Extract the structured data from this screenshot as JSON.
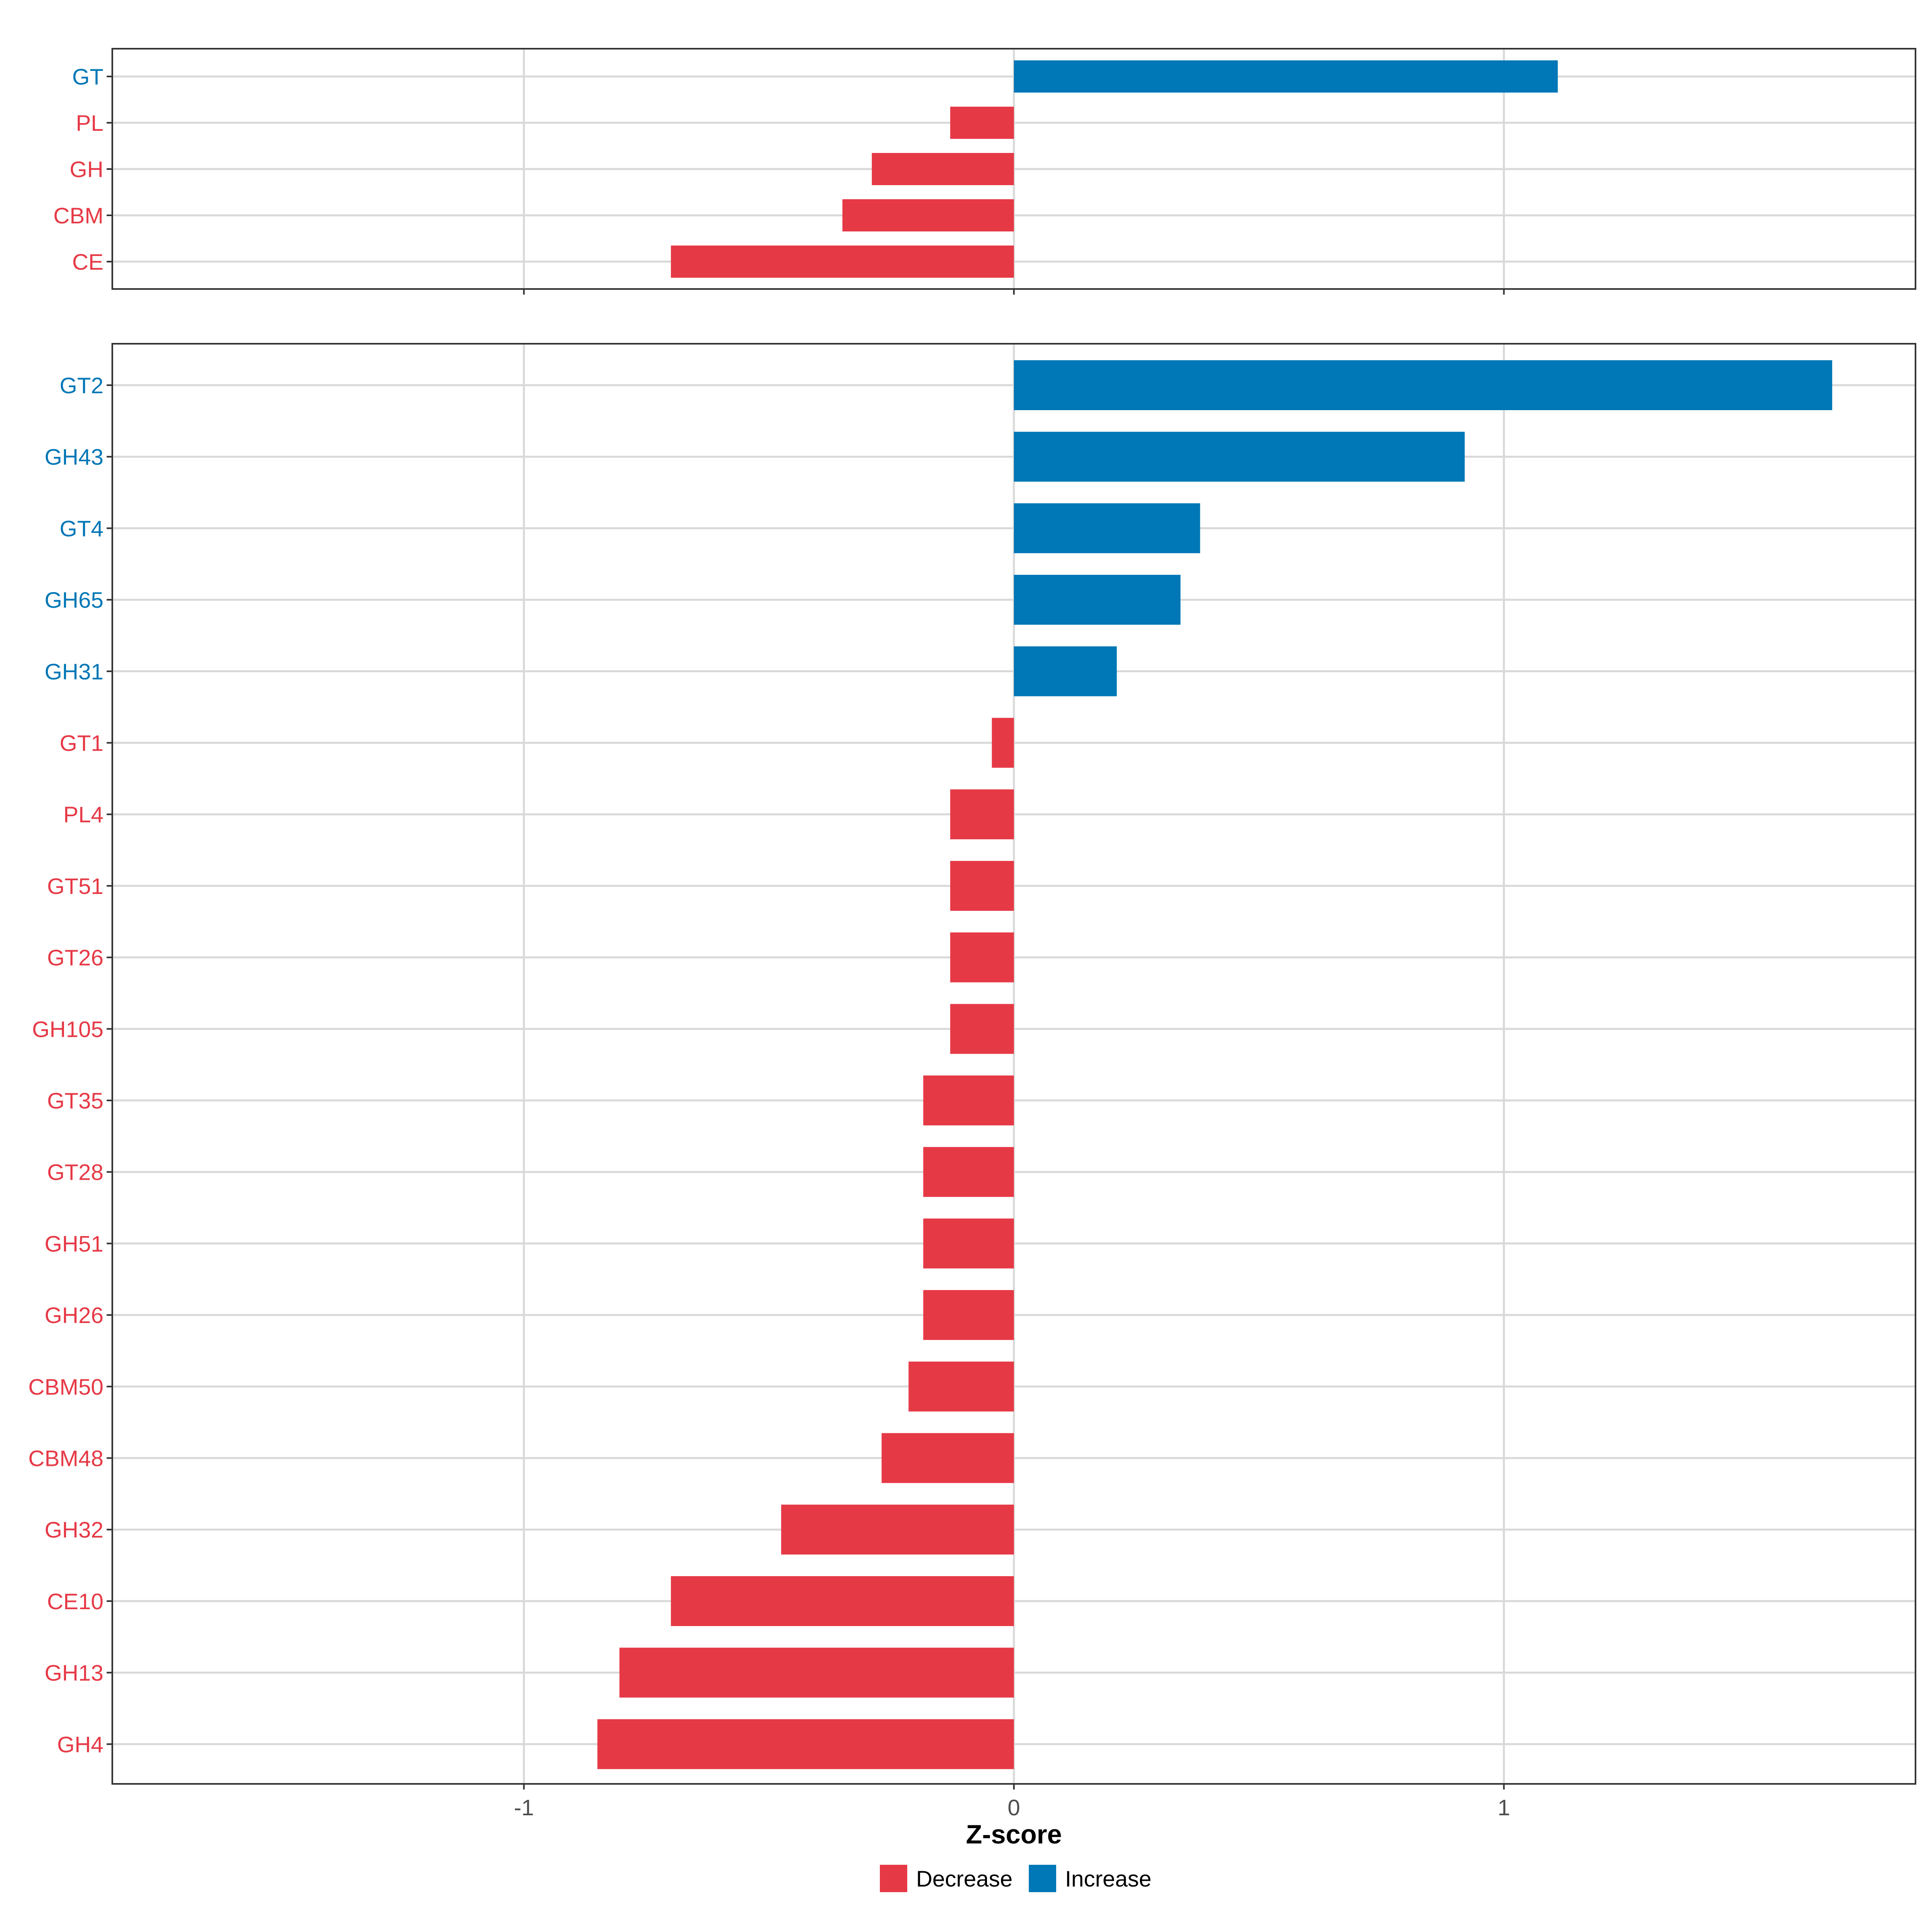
{
  "chart_data": [
    {
      "type": "bar",
      "orientation": "horizontal",
      "panel": "top",
      "categories": [
        "GT",
        "PL",
        "GH",
        "CBM",
        "CE"
      ],
      "values": [
        1.11,
        -0.13,
        -0.29,
        -0.35,
        -0.7
      ],
      "direction": [
        "Increase",
        "Decrease",
        "Decrease",
        "Decrease",
        "Decrease"
      ],
      "xlim": [
        -1.84,
        1.84
      ],
      "xticks": [
        -1,
        0,
        1
      ],
      "grid": true
    },
    {
      "type": "bar",
      "orientation": "horizontal",
      "panel": "bottom",
      "categories": [
        "GT2",
        "GH43",
        "GT4",
        "GH65",
        "GH31",
        "GT1",
        "PL4",
        "GT51",
        "GT26",
        "GH105",
        "GT35",
        "GT28",
        "GH51",
        "GH26",
        "CBM50",
        "CBM48",
        "GH32",
        "CE10",
        "GH13",
        "GH4"
      ],
      "values": [
        1.67,
        0.92,
        0.38,
        0.34,
        0.21,
        -0.045,
        -0.13,
        -0.13,
        -0.13,
        -0.13,
        -0.185,
        -0.185,
        -0.185,
        -0.185,
        -0.215,
        -0.27,
        -0.475,
        -0.7,
        -0.805,
        -0.85
      ],
      "direction": [
        "Increase",
        "Increase",
        "Increase",
        "Increase",
        "Increase",
        "Decrease",
        "Decrease",
        "Decrease",
        "Decrease",
        "Decrease",
        "Decrease",
        "Decrease",
        "Decrease",
        "Decrease",
        "Decrease",
        "Decrease",
        "Decrease",
        "Decrease",
        "Decrease",
        "Decrease"
      ],
      "xlim": [
        -1.84,
        1.84
      ],
      "xticks": [
        -1,
        0,
        1
      ],
      "xtick_labels": [
        "-1",
        "0",
        "1"
      ],
      "xlabel": "Z-score",
      "grid": true
    }
  ],
  "legend": {
    "position": "bottom",
    "items": [
      {
        "label": "Decrease",
        "color": "#E63946"
      },
      {
        "label": "Increase",
        "color": "#0077B6"
      }
    ]
  },
  "colors": {
    "Decrease": "#E63946",
    "Increase": "#0077B6"
  }
}
